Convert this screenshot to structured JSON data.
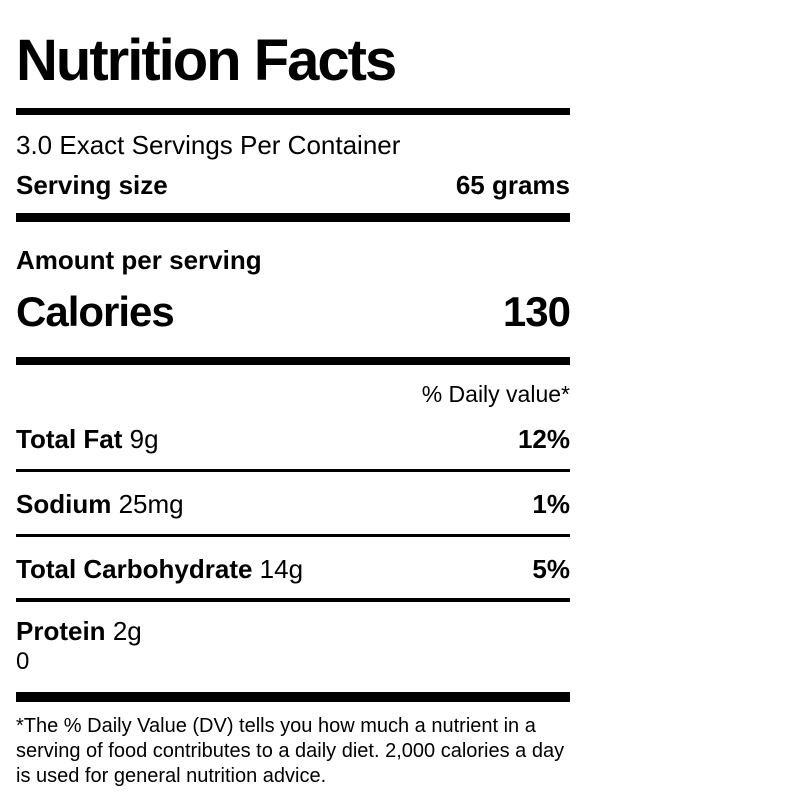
{
  "colors": {
    "text": "#000000",
    "background": "#ffffff",
    "divider": "#000000"
  },
  "label": {
    "title": "Nutrition Facts",
    "servings_per_container": "3.0 Exact Servings Per Container",
    "serving_size": {
      "label": "Serving size",
      "value": "65 grams"
    },
    "amount_per_serving": "Amount per serving",
    "calories": {
      "label": "Calories",
      "value": "130"
    },
    "daily_value_header": "% Daily value*",
    "nutrients": [
      {
        "name": "Total Fat",
        "amount": "9g",
        "dv": "12%"
      },
      {
        "name": "Sodium",
        "amount": "25mg",
        "dv": "1%"
      },
      {
        "name": "Total Carbohydrate",
        "amount": "14g",
        "dv": "5%"
      },
      {
        "name": "Protein",
        "amount": "2g",
        "dv": ""
      }
    ],
    "extra_value": "0",
    "footnote_lines": [
      "*The % Daily Value (DV) tells you how much a nutrient in a",
      "serving of food contributes to a daily diet. 2,000 calories a day",
      "is used for general nutrition advice."
    ]
  }
}
